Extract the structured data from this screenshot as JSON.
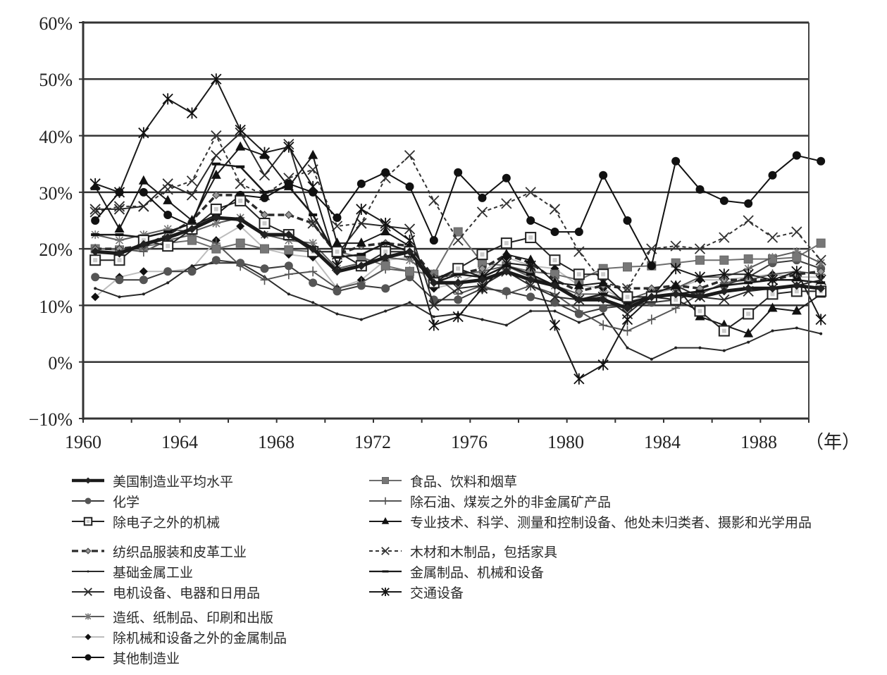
{
  "chart_data": {
    "type": "line",
    "title": "",
    "xlabel": "（年）",
    "ylabel": "",
    "ylim": [
      -0.1,
      0.6
    ],
    "xlim": [
      1960,
      1990
    ],
    "yticks": [
      "60%",
      "50%",
      "40%",
      "30%",
      "20%",
      "10%",
      "0%",
      "−10%"
    ],
    "xticks": [
      "1960",
      "1964",
      "1968",
      "1972",
      "1976",
      "1980",
      "1984",
      "1988"
    ],
    "x_unit_label": "（年）",
    "grid": "horizontal",
    "legend_position": "bottom",
    "x": [
      1960,
      1961,
      1962,
      1963,
      1964,
      1965,
      1966,
      1967,
      1968,
      1969,
      1970,
      1971,
      1972,
      1973,
      1974,
      1975,
      1976,
      1977,
      1978,
      1979,
      1980,
      1981,
      1982,
      1983,
      1984,
      1985,
      1986,
      1987,
      1988,
      1989,
      1990
    ],
    "series": [
      {
        "key": "avg",
        "name": "美国制造业平均水平",
        "color": "#1a1a1a",
        "width": 5,
        "dash": "",
        "marker": "diamond-small",
        "values": [
          19.5,
          19.2,
          20.8,
          22.0,
          23.5,
          25.5,
          25.2,
          22.5,
          22.5,
          20.0,
          16.0,
          17.0,
          18.5,
          19.5,
          14.0,
          14.0,
          14.5,
          16.0,
          14.5,
          13.5,
          11.0,
          11.0,
          9.5,
          11.5,
          12.0,
          11.5,
          12.5,
          13.0,
          13.0,
          13.5,
          13.0
        ]
      },
      {
        "key": "food",
        "name": "食品、饮料和烟草",
        "color": "#6e6e6e",
        "width": 2,
        "dash": "",
        "marker": "square-filled",
        "values": [
          20.0,
          19.8,
          20.5,
          21.0,
          21.5,
          20.0,
          21.0,
          20.0,
          19.8,
          19.5,
          19.5,
          18.5,
          17.0,
          16.0,
          15.5,
          23.0,
          17.5,
          17.0,
          16.0,
          15.5,
          14.5,
          16.5,
          16.8,
          17.0,
          17.5,
          18.0,
          18.0,
          18.2,
          18.2,
          18.5,
          21.0
        ]
      },
      {
        "key": "chem",
        "name": "化学",
        "color": "#3a3a3a",
        "width": 2,
        "dash": "",
        "marker": "circle-gray",
        "values": [
          15.0,
          14.5,
          14.5,
          16.0,
          16.0,
          18.0,
          17.5,
          16.5,
          17.0,
          14.0,
          12.5,
          13.5,
          13.0,
          15.0,
          11.0,
          11.0,
          13.0,
          12.5,
          11.5,
          10.5,
          8.5,
          9.5,
          10.0,
          10.5,
          11.0,
          12.5,
          13.5,
          15.0,
          17.5,
          18.0,
          16.5
        ]
      },
      {
        "key": "nonmetal",
        "name": "除石油、煤炭之外的非金属矿产品",
        "color": "#555555",
        "width": 2,
        "dash": "",
        "marker": "plus",
        "values": [
          20.0,
          20.0,
          19.5,
          21.5,
          22.5,
          21.0,
          17.0,
          14.5,
          15.5,
          16.0,
          13.0,
          14.0,
          16.5,
          16.0,
          15.5,
          12.0,
          13.5,
          12.0,
          13.5,
          12.0,
          9.0,
          6.5,
          5.5,
          7.5,
          9.5,
          12.0,
          14.0,
          14.5,
          15.5,
          16.0,
          15.5
        ]
      },
      {
        "key": "machinery",
        "name": "除电子之外的机械",
        "color": "#222222",
        "width": 2,
        "dash": "",
        "marker": "square-open",
        "values": [
          18.0,
          18.0,
          21.5,
          20.5,
          23.5,
          27.0,
          28.5,
          24.5,
          22.5,
          19.5,
          19.5,
          17.0,
          19.5,
          19.5,
          14.0,
          16.5,
          19.0,
          21.0,
          22.0,
          18.0,
          15.5,
          15.5,
          11.5,
          11.5,
          11.0,
          9.0,
          5.5,
          8.5,
          12.0,
          12.5,
          12.5
        ]
      },
      {
        "key": "instruments",
        "name": "专业技术、科学、测量和控制设备、他处未归类者、摄影和光学用品",
        "color": "#1a1a1a",
        "width": 2,
        "dash": "",
        "marker": "triangle",
        "values": [
          31.0,
          23.5,
          32.0,
          28.5,
          25.0,
          33.0,
          38.0,
          36.5,
          31.0,
          36.5,
          21.0,
          21.0,
          23.0,
          20.5,
          14.5,
          16.5,
          15.0,
          19.0,
          18.0,
          14.0,
          13.5,
          14.0,
          10.0,
          12.0,
          13.5,
          8.0,
          6.5,
          5.0,
          9.5,
          9.0,
          12.0
        ]
      },
      {
        "key": "textile",
        "name": "纺织品服装和皮革工业",
        "color": "#2a2a2a",
        "width": 3.5,
        "dash": "9,5",
        "marker": "diamond-open",
        "values": [
          20.0,
          20.0,
          20.5,
          22.5,
          25.0,
          29.5,
          29.5,
          26.0,
          26.0,
          24.5,
          19.0,
          20.5,
          21.0,
          20.5,
          15.0,
          15.5,
          16.5,
          19.0,
          17.5,
          14.5,
          12.5,
          13.5,
          13.0,
          13.0,
          13.5,
          13.0,
          14.5,
          14.5,
          14.5,
          15.5,
          16.0
        ]
      },
      {
        "key": "wood",
        "name": "木材和木制品，包括家具",
        "color": "#333333",
        "width": 2,
        "dash": "5,4",
        "marker": "x",
        "values": [
          26.5,
          27.5,
          27.5,
          30.5,
          32.0,
          40.0,
          31.5,
          29.5,
          32.5,
          34.0,
          24.0,
          24.5,
          32.5,
          36.5,
          28.5,
          21.5,
          26.5,
          28.0,
          30.0,
          27.0,
          19.5,
          14.0,
          13.0,
          20.0,
          20.5,
          20.0,
          22.0,
          25.0,
          22.0,
          23.0,
          18.0
        ]
      },
      {
        "key": "basicmetal",
        "name": "基础金属工业",
        "color": "#2a2a2a",
        "width": 2,
        "dash": "",
        "marker": "dot-small",
        "values": [
          13.0,
          11.5,
          12.0,
          14.0,
          17.0,
          17.5,
          17.5,
          15.0,
          12.0,
          10.5,
          8.5,
          7.5,
          9.0,
          10.5,
          8.0,
          8.5,
          7.5,
          6.5,
          9.0,
          9.0,
          7.0,
          8.5,
          2.5,
          0.5,
          2.5,
          2.5,
          2.0,
          3.5,
          5.5,
          6.0,
          5.0
        ]
      },
      {
        "key": "metalmach",
        "name": "金属制品、机械和设备",
        "color": "#1a1a1a",
        "width": 2.5,
        "dash": "",
        "marker": "dash",
        "values": [
          22.5,
          22.5,
          22.0,
          23.0,
          24.5,
          35.0,
          34.5,
          30.0,
          31.0,
          26.0,
          18.5,
          19.0,
          21.0,
          19.5,
          14.0,
          15.5,
          15.0,
          17.0,
          15.5,
          13.5,
          11.0,
          12.0,
          10.5,
          11.5,
          12.0,
          12.5,
          13.5,
          14.0,
          14.5,
          14.5,
          14.0
        ]
      },
      {
        "key": "electrical",
        "name": "电机设备、电器和日用品",
        "color": "#2a2a2a",
        "width": 2,
        "dash": "",
        "marker": "x",
        "values": [
          27.0,
          27.0,
          27.5,
          31.5,
          29.5,
          36.5,
          40.5,
          33.0,
          38.5,
          24.5,
          19.0,
          24.5,
          24.0,
          23.5,
          10.0,
          13.0,
          13.5,
          16.0,
          13.5,
          11.5,
          11.0,
          11.5,
          8.5,
          12.0,
          13.5,
          11.5,
          11.0,
          12.5,
          13.0,
          13.5,
          14.5
        ]
      },
      {
        "key": "transport",
        "name": "交通设备",
        "color": "#1a1a1a",
        "width": 2,
        "dash": "",
        "marker": "asterisk",
        "values": [
          31.5,
          30.0,
          40.5,
          46.5,
          44.0,
          50.0,
          41.0,
          37.0,
          38.0,
          31.0,
          17.0,
          27.0,
          24.5,
          21.5,
          6.5,
          8.0,
          13.0,
          17.5,
          17.0,
          6.5,
          -3.0,
          -0.5,
          7.5,
          11.5,
          16.5,
          15.0,
          15.5,
          15.5,
          14.5,
          16.0,
          7.5
        ]
      },
      {
        "key": "paper",
        "name": "造纸、纸制品、印刷和出版",
        "color": "#5a5a5a",
        "width": 2,
        "dash": "",
        "marker": "asterisk-gray",
        "values": [
          22.5,
          21.5,
          22.5,
          23.5,
          23.0,
          24.5,
          25.5,
          22.5,
          21.5,
          21.0,
          16.5,
          17.5,
          18.5,
          18.0,
          15.0,
          15.5,
          16.0,
          17.0,
          15.0,
          13.5,
          12.0,
          12.0,
          11.0,
          12.5,
          13.0,
          15.0,
          15.0,
          16.5,
          18.5,
          19.5,
          17.5
        ]
      },
      {
        "key": "metalprod",
        "name": "除机械和设备之外的金属制品",
        "color": "#bdbdbd",
        "width": 2,
        "dash": "",
        "marker": "diamond-black",
        "values": [
          11.5,
          15.0,
          16.0,
          16.0,
          16.5,
          21.5,
          24.0,
          20.0,
          19.0,
          18.5,
          13.0,
          14.5,
          18.0,
          18.5,
          13.0,
          14.0,
          16.0,
          18.5,
          17.0,
          16.5,
          13.5,
          13.0,
          10.5,
          12.0,
          13.0,
          14.5,
          14.5,
          15.0,
          15.5,
          15.0,
          15.0
        ]
      },
      {
        "key": "other",
        "name": "其他制造业",
        "color": "#111111",
        "width": 2,
        "dash": "",
        "marker": "circle-black",
        "values": [
          25.0,
          30.0,
          30.0,
          26.0,
          24.0,
          26.0,
          29.5,
          29.0,
          31.5,
          30.0,
          25.5,
          31.5,
          33.5,
          31.0,
          21.5,
          33.5,
          29.0,
          32.5,
          25.0,
          23.0,
          23.0,
          33.0,
          25.0,
          17.0,
          35.5,
          30.5,
          28.5,
          28.0,
          33.0,
          36.5,
          35.5
        ]
      }
    ]
  },
  "axes": {
    "y_labels": [
      "60%",
      "50%",
      "40%",
      "30%",
      "20%",
      "10%",
      "0%",
      "−10%"
    ],
    "x_labels": [
      "1960",
      "1964",
      "1968",
      "1972",
      "1976",
      "1980",
      "1984",
      "1988"
    ],
    "x_unit": "（年）"
  },
  "legend": {
    "left": [
      {
        "key": "avg",
        "label": "美国制造业平均水平"
      },
      {
        "key": "chem",
        "label": "化学"
      },
      {
        "key": "machinery",
        "label": "除电子之外的机械"
      },
      {
        "key": "textile",
        "label": "纺织品服装和皮革工业"
      },
      {
        "key": "basicmetal",
        "label": "基础金属工业"
      },
      {
        "key": "electrical",
        "label": "电机设备、电器和日用品"
      },
      {
        "key": "paper",
        "label": "造纸、纸制品、印刷和出版"
      },
      {
        "key": "metalprod",
        "label": "除机械和设备之外的金属制品"
      },
      {
        "key": "other",
        "label": "其他制造业"
      }
    ],
    "right": [
      {
        "key": "food",
        "label": "食品、饮料和烟草"
      },
      {
        "key": "nonmetal",
        "label": "除石油、煤炭之外的非金属矿产品"
      },
      {
        "key": "instruments",
        "label": "专业技术、科学、测量和控制设备、他处未归类者、摄影和光学用品"
      },
      {
        "key": "wood",
        "label": "木材和木制品，包括家具"
      },
      {
        "key": "metalmach",
        "label": "金属制品、机械和设备"
      },
      {
        "key": "transport",
        "label": "交通设备"
      }
    ]
  }
}
